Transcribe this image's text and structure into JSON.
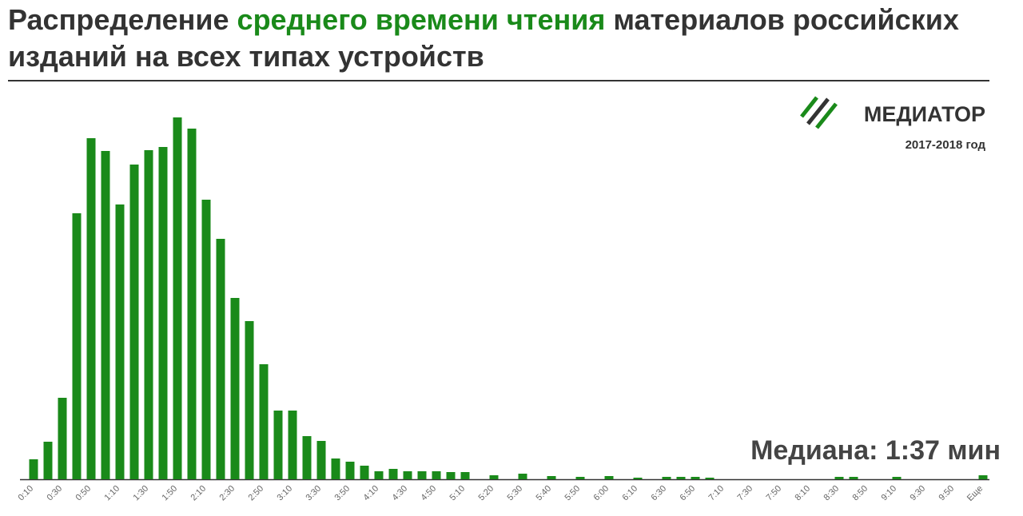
{
  "chart_data": {
    "type": "bar",
    "title": {
      "before": "Распределение",
      "highlight": "среднего времени чтения",
      "after": "материалов российских изданий на всех типах устройств"
    },
    "logo": "МЕДИАТОР",
    "period": "2017-2018 год",
    "annotation": "Медиана: 1:37 мин",
    "categories": [
      "0:10",
      null,
      "0:30",
      null,
      "0:50",
      null,
      "1:10",
      null,
      "1:30",
      null,
      "1:50",
      null,
      "2:10",
      null,
      "2:30",
      null,
      "2:50",
      null,
      "3:10",
      null,
      "3:30",
      null,
      "3:50",
      null,
      "4:10",
      null,
      "4:30",
      null,
      "4:50",
      null,
      "5:10",
      null,
      "5:20",
      null,
      "5:30",
      null,
      "5:40",
      null,
      "5:50",
      null,
      "6:00",
      null,
      "6:10",
      null,
      "6:30",
      null,
      "6:50",
      null,
      "7:10",
      null,
      "7:30",
      null,
      "7:50",
      null,
      "8:10",
      null,
      "8:30",
      null,
      "8:50",
      null,
      "9:10",
      null,
      "9:30",
      null,
      "9:50",
      null,
      "Еще"
    ],
    "values": [
      25,
      47,
      102,
      333,
      427,
      411,
      344,
      394,
      412,
      416,
      453,
      439,
      350,
      301,
      227,
      198,
      144,
      86,
      86,
      54,
      48,
      26,
      22,
      17,
      10,
      13,
      10,
      10,
      10,
      9,
      9,
      0,
      5,
      0,
      7,
      0,
      4,
      0,
      3,
      0,
      4,
      0,
      2,
      0,
      3,
      3,
      3,
      2,
      0,
      0,
      0,
      0,
      0,
      0,
      0,
      0,
      3,
      3,
      0,
      0,
      3,
      0,
      0,
      0,
      0,
      0,
      5
    ],
    "color": "#1a8a1a",
    "ylim": [
      0,
      460
    ]
  }
}
